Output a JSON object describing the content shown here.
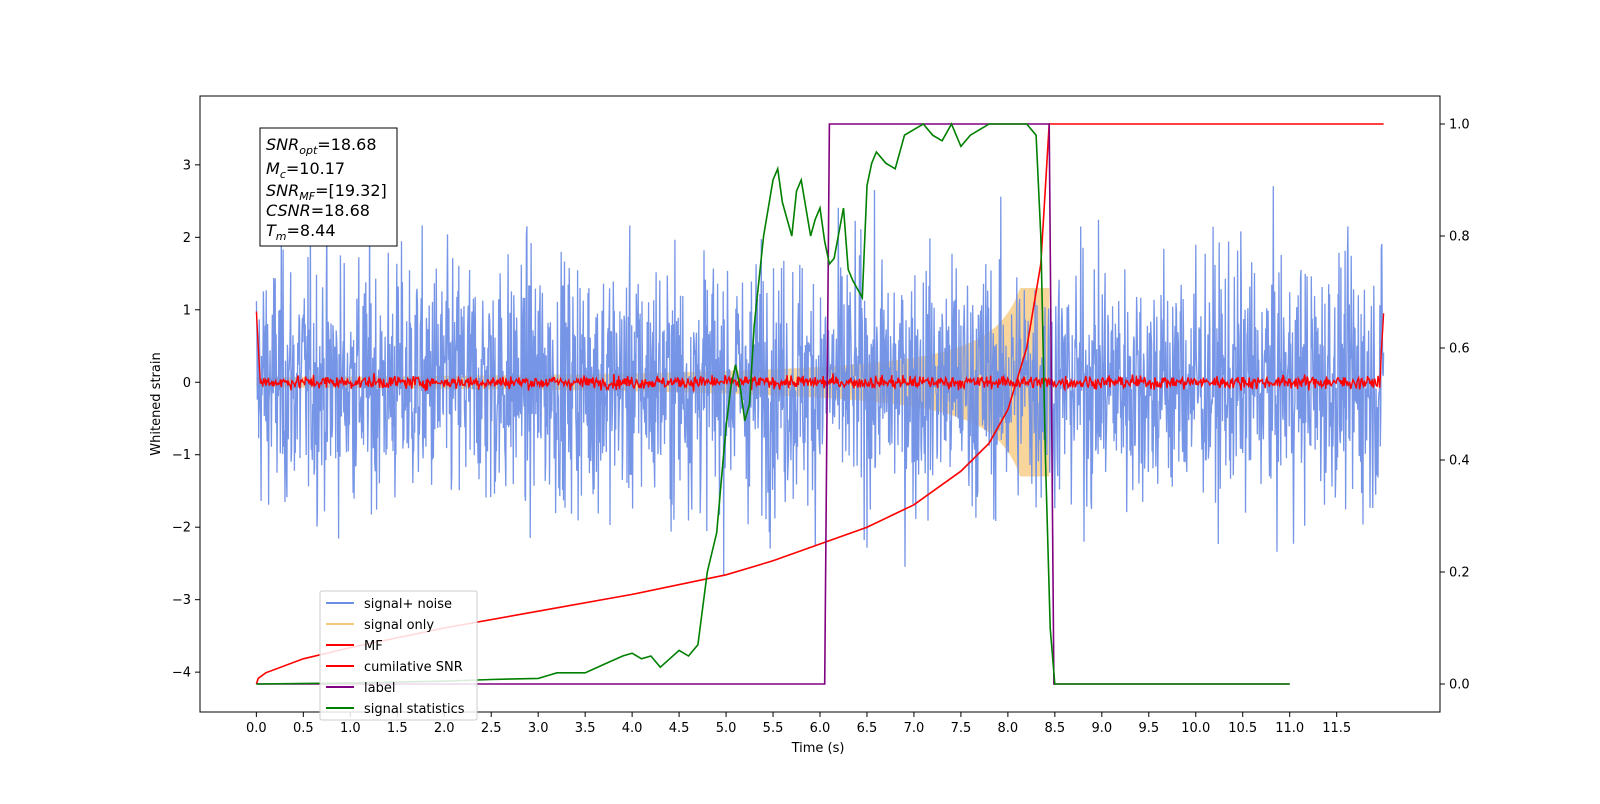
{
  "chart_data": {
    "type": "line",
    "xlabel": "Time (s)",
    "ylabel": "Whitened strain",
    "xlim": [
      -0.6,
      12.6
    ],
    "ylim": [
      -4.55,
      3.95
    ],
    "ylim_right": [
      -0.05,
      1.05
    ],
    "grid": false,
    "legend_placement": "lower-left",
    "x_ticks": [
      "0.0",
      "0.5",
      "1.0",
      "1.5",
      "2.0",
      "2.5",
      "3.0",
      "3.5",
      "4.0",
      "4.5",
      "5.0",
      "5.5",
      "6.0",
      "6.5",
      "7.0",
      "7.5",
      "8.0",
      "8.5",
      "9.0",
      "9.5",
      "10.0",
      "10.5",
      "11.0",
      "11.5"
    ],
    "x_tick_values": [
      0.0,
      0.5,
      1.0,
      1.5,
      2.0,
      2.5,
      3.0,
      3.5,
      4.0,
      4.5,
      5.0,
      5.5,
      6.0,
      6.5,
      7.0,
      7.5,
      8.0,
      8.5,
      9.0,
      9.5,
      10.0,
      10.5,
      11.0,
      11.5
    ],
    "y_ticks": [
      "3",
      "2",
      "1",
      "0",
      "−1",
      "−2",
      "−3",
      "−4"
    ],
    "y_tick_values": [
      3,
      2,
      1,
      0,
      -1,
      -2,
      -3,
      -4
    ],
    "y2_ticks": [
      "1.0",
      "0.8",
      "0.6",
      "0.4",
      "0.2",
      "0.0"
    ],
    "y2_tick_values": [
      1.0,
      0.8,
      0.6,
      0.4,
      0.2,
      0.0
    ],
    "annotation": {
      "snr_opt": {
        "main": "SNR",
        "sub": "opt",
        "value": "=18.68"
      },
      "mc": {
        "main": "M",
        "sub": "c",
        "value": "=10.17"
      },
      "snr_mf": {
        "main": "SNR",
        "sub": "MF",
        "value": "=[19.32]"
      },
      "csnr": {
        "main": "CSNR",
        "value": "=18.68"
      },
      "tm": {
        "main": "T",
        "sub": "m",
        "value": "=8.44"
      }
    },
    "series": [
      {
        "name": "signal+ noise",
        "color": "#6f8fe6",
        "kind": "noise",
        "t_range": [
          0,
          12
        ],
        "amplitude_std": 0.85
      },
      {
        "name": "signal only",
        "color": "#f5c77a",
        "kind": "chirp",
        "t_range": [
          0,
          8.44
        ],
        "peak_amplitude": 1.3
      },
      {
        "name": "MF",
        "color": "#ff0000",
        "kind": "matched_filter",
        "t_range": [
          0,
          12
        ],
        "edge_values": [
          1.0,
          0.95
        ]
      },
      {
        "name": "cumilative SNR",
        "color": "#ff0000",
        "axis": "right",
        "x": [
          0.0,
          0.02,
          0.1,
          0.5,
          1.0,
          2.0,
          3.0,
          4.0,
          5.0,
          5.5,
          6.0,
          6.5,
          7.0,
          7.5,
          7.8,
          8.0,
          8.2,
          8.35,
          8.44,
          9.0,
          10.0,
          11.0,
          12.0
        ],
        "y": [
          0.0,
          0.01,
          0.02,
          0.045,
          0.065,
          0.1,
          0.13,
          0.16,
          0.195,
          0.22,
          0.25,
          0.28,
          0.32,
          0.38,
          0.43,
          0.49,
          0.6,
          0.75,
          1.0,
          1.0,
          1.0,
          1.0,
          1.0
        ]
      },
      {
        "name": "label",
        "color": "#800080",
        "axis": "right",
        "x": [
          0.0,
          6.05,
          6.1,
          8.44,
          8.49,
          11.0
        ],
        "y": [
          0.0,
          0.0,
          1.0,
          1.0,
          0.0,
          0.0
        ]
      },
      {
        "name": "signal statistics",
        "color": "#008000",
        "axis": "right",
        "x": [
          0.0,
          1.0,
          2.0,
          2.5,
          3.0,
          3.1,
          3.2,
          3.5,
          3.7,
          3.9,
          4.0,
          4.1,
          4.2,
          4.3,
          4.4,
          4.5,
          4.6,
          4.7,
          4.8,
          4.9,
          5.0,
          5.05,
          5.1,
          5.15,
          5.2,
          5.25,
          5.3,
          5.4,
          5.5,
          5.55,
          5.6,
          5.7,
          5.75,
          5.8,
          5.9,
          5.95,
          6.0,
          6.05,
          6.1,
          6.15,
          6.25,
          6.3,
          6.35,
          6.45,
          6.5,
          6.55,
          6.6,
          6.7,
          6.8,
          6.9,
          7.0,
          7.1,
          7.2,
          7.3,
          7.4,
          7.5,
          7.6,
          7.7,
          7.8,
          8.0,
          8.2,
          8.3,
          8.35,
          8.4,
          8.45,
          8.5,
          9.0,
          10.0,
          11.0
        ],
        "y": [
          0.0,
          0.002,
          0.005,
          0.008,
          0.01,
          0.015,
          0.02,
          0.02,
          0.035,
          0.05,
          0.055,
          0.045,
          0.05,
          0.03,
          0.045,
          0.06,
          0.05,
          0.07,
          0.2,
          0.27,
          0.46,
          0.53,
          0.57,
          0.53,
          0.47,
          0.5,
          0.64,
          0.8,
          0.9,
          0.92,
          0.86,
          0.8,
          0.88,
          0.9,
          0.8,
          0.83,
          0.85,
          0.79,
          0.75,
          0.76,
          0.85,
          0.74,
          0.72,
          0.69,
          0.89,
          0.93,
          0.95,
          0.93,
          0.92,
          0.98,
          0.99,
          1.0,
          0.98,
          0.97,
          1.0,
          0.96,
          0.98,
          0.99,
          1.0,
          1.0,
          1.0,
          0.98,
          0.8,
          0.4,
          0.1,
          0.0,
          0.0,
          0.0,
          0.0
        ]
      }
    ]
  }
}
